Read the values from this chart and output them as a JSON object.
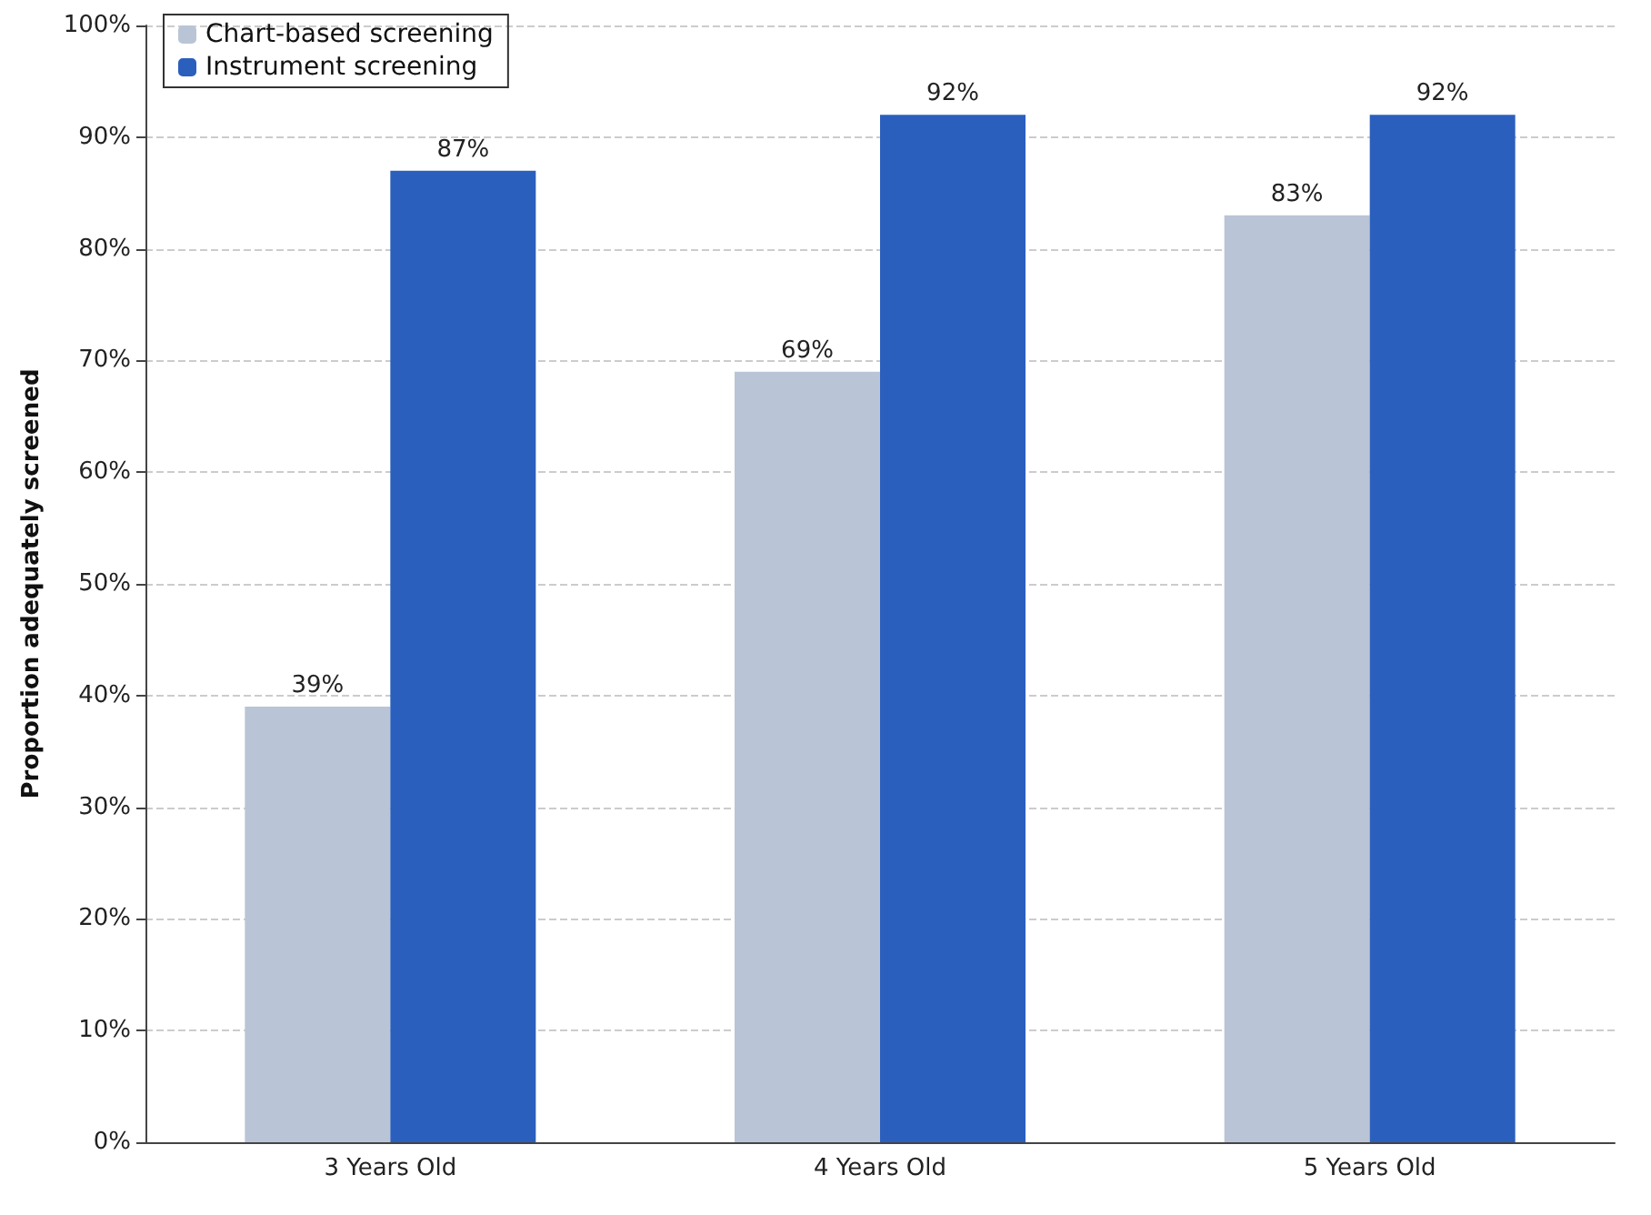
{
  "chart_data": {
    "type": "bar",
    "ylabel": "Proportion adequately screened",
    "categories": [
      "3 Years Old",
      "4 Years Old",
      "5 Years Old"
    ],
    "series": [
      {
        "name": "Chart-based screening",
        "color": "#b9c5d6",
        "values": [
          39,
          69,
          83
        ],
        "value_labels": [
          "39%",
          "69%",
          "83%"
        ]
      },
      {
        "name": "Instrument screening",
        "color": "#2b5fbd",
        "values": [
          87,
          92,
          92
        ],
        "value_labels": [
          "87%",
          "92%",
          "92%"
        ]
      }
    ],
    "ylim": [
      0,
      100
    ],
    "yticks": [
      {
        "value": 0,
        "label": "0%"
      },
      {
        "value": 10,
        "label": "10%"
      },
      {
        "value": 20,
        "label": "20%"
      },
      {
        "value": 30,
        "label": "30%"
      },
      {
        "value": 40,
        "label": "40%"
      },
      {
        "value": 50,
        "label": "50%"
      },
      {
        "value": 60,
        "label": "60%"
      },
      {
        "value": 70,
        "label": "70%"
      },
      {
        "value": 80,
        "label": "80%"
      },
      {
        "value": 90,
        "label": "90%"
      },
      {
        "value": 100,
        "label": "100%"
      }
    ],
    "grid": "y",
    "legend": "top left"
  }
}
